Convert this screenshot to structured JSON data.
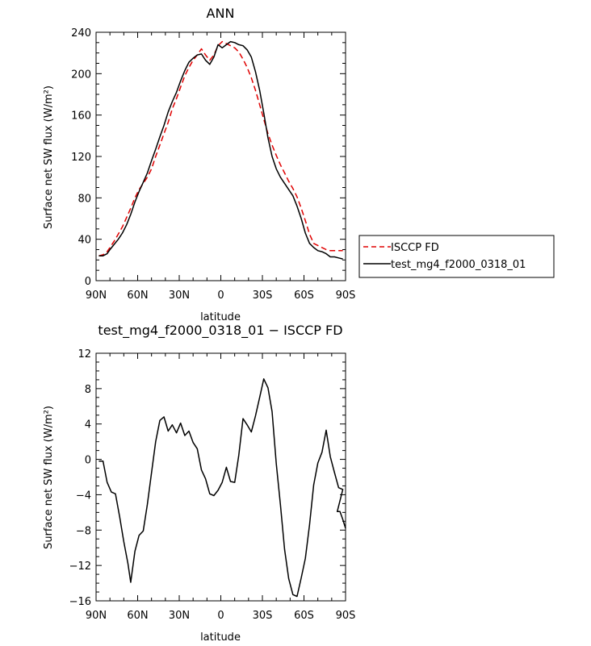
{
  "chart_data": [
    {
      "type": "line",
      "title": "ANN",
      "xlabel": "latitude",
      "ylabel": "Surface net SW flux (W/m²)",
      "xlim": [
        90,
        -90
      ],
      "ylim": [
        0,
        240
      ],
      "xticks": [
        90,
        60,
        30,
        0,
        -30,
        -60,
        -90
      ],
      "xtick_labels": [
        "90N",
        "60N",
        "30N",
        "0",
        "30S",
        "60S",
        "90S"
      ],
      "yticks": [
        0,
        40,
        80,
        120,
        160,
        200,
        240
      ],
      "ytick_labels": [
        "0",
        "40",
        "80",
        "120",
        "160",
        "200",
        "240"
      ],
      "legend": {
        "placement": "right-outside-bottom",
        "entries": [
          "ISCCP FD",
          "test_mg4_f2000_0318_01"
        ]
      },
      "series": [
        {
          "name": "ISCCP FD",
          "color": "#e00000",
          "dash": "dashed",
          "x": [
            88,
            85,
            82,
            80,
            77,
            74,
            71,
            68,
            65,
            62,
            59,
            56,
            53,
            50,
            47,
            44,
            41,
            38,
            35,
            32,
            29,
            26,
            23,
            20,
            17,
            14,
            11,
            8,
            5,
            2,
            -1,
            -4,
            -7,
            -10,
            -13,
            -16,
            -19,
            -22,
            -25,
            -28,
            -31,
            -34,
            -37,
            -40,
            -43,
            -46,
            -49,
            -52,
            -55,
            -58,
            -61,
            -64,
            -67,
            -70,
            -73,
            -76,
            -79,
            -82,
            -85,
            -88
          ],
          "y": [
            24,
            25,
            28,
            32,
            38,
            45,
            52,
            61,
            70,
            80,
            88,
            94,
            100,
            108,
            120,
            131,
            142,
            153,
            166,
            176,
            187,
            198,
            206,
            213,
            218,
            224,
            218,
            213,
            218,
            227,
            231,
            229,
            227,
            225,
            221,
            214,
            206,
            196,
            184,
            170,
            156,
            142,
            131,
            121,
            112,
            104,
            96,
            89,
            81,
            70,
            58,
            45,
            36,
            34,
            32,
            30,
            29,
            29,
            29,
            29
          ]
        },
        {
          "name": "test_mg4_f2000_0318_01",
          "color": "#000000",
          "dash": "solid",
          "x": [
            88,
            85,
            82,
            80,
            77,
            74,
            71,
            68,
            65,
            62,
            59,
            56,
            53,
            50,
            47,
            44,
            41,
            38,
            35,
            32,
            29,
            26,
            23,
            20,
            17,
            14,
            11,
            8,
            5,
            2,
            -1,
            -4,
            -7,
            -10,
            -13,
            -16,
            -19,
            -22,
            -25,
            -28,
            -31,
            -34,
            -37,
            -40,
            -43,
            -46,
            -49,
            -52,
            -55,
            -58,
            -61,
            -64,
            -67,
            -70,
            -73,
            -76,
            -79,
            -82,
            -85,
            -88
          ],
          "y": [
            24,
            24,
            26,
            30,
            35,
            40,
            46,
            54,
            64,
            76,
            86,
            95,
            104,
            116,
            127,
            139,
            150,
            163,
            173,
            182,
            193,
            203,
            211,
            215,
            218,
            219,
            213,
            209,
            216,
            228,
            225,
            228,
            231,
            230,
            228,
            227,
            223,
            216,
            202,
            184,
            162,
            138,
            120,
            108,
            100,
            94,
            88,
            82,
            72,
            60,
            46,
            36,
            32,
            29,
            28,
            26,
            23,
            23,
            22,
            21
          ]
        }
      ]
    },
    {
      "type": "line",
      "title": "test_mg4_f2000_0318_01 − ISCCP FD",
      "xlabel": "latitude",
      "ylabel": "Surface net SW flux (W/m²)",
      "xlim": [
        90,
        -90
      ],
      "ylim": [
        -16,
        12
      ],
      "xticks": [
        90,
        60,
        30,
        0,
        -30,
        -60,
        -90
      ],
      "xtick_labels": [
        "90N",
        "60N",
        "30N",
        "0",
        "30S",
        "60S",
        "90S"
      ],
      "yticks": [
        -16,
        -12,
        -8,
        -4,
        0,
        4,
        8,
        12
      ],
      "ytick_labels": [
        "−16",
        "−12",
        "−8",
        "−4",
        "0",
        "4",
        "8",
        "12"
      ],
      "series": [
        {
          "color": "#000000",
          "dash": "solid",
          "x": [
            88,
            85,
            82,
            79,
            76,
            73,
            70,
            67,
            65,
            62,
            59,
            56,
            53,
            50,
            47,
            44,
            41,
            38,
            35,
            32,
            29,
            26,
            23,
            20,
            17,
            14,
            11,
            8,
            5,
            2,
            -1,
            -4,
            -7,
            -10,
            -13,
            -16,
            -19,
            -22,
            -25,
            -28,
            -31,
            -34,
            -37,
            -40,
            -43,
            -46,
            -49,
            -52,
            -55,
            -58,
            -61,
            -64,
            -67,
            -70,
            -73,
            -76,
            -79,
            -82,
            -85,
            -88
          ],
          "y": [
            -0.2,
            -0.2,
            -2.6,
            -3.7,
            -3.9,
            -6.5,
            -9.3,
            -11.8,
            -13.9,
            -10.4,
            -8.6,
            -8.1,
            -5.1,
            -1.5,
            2.0,
            4.4,
            4.8,
            3.2,
            3.9,
            3.0,
            4.1,
            2.7,
            3.2,
            1.9,
            1.2,
            -1.2,
            -2.2,
            -3.9,
            -4.1,
            -3.5,
            -2.6,
            -0.9,
            -2.5,
            -2.6,
            0.5,
            4.6,
            3.9,
            3.1,
            4.9,
            7.0,
            9.1,
            8.1,
            5.4,
            -0.5,
            -5.1,
            -10.2,
            -13.5,
            -15.3,
            -15.5,
            -13.4,
            -11.2,
            -7.4,
            -2.9,
            -0.4,
            0.8,
            3.3,
            0.3,
            -1.5,
            -3.2,
            -3.4
          ]
        }
      ]
    }
  ],
  "extra_tail": {
    "x": [
      -84,
      -86,
      -88,
      -90
    ],
    "y": [
      -5.9,
      -5.9,
      -6.8,
      -7.8
    ]
  }
}
